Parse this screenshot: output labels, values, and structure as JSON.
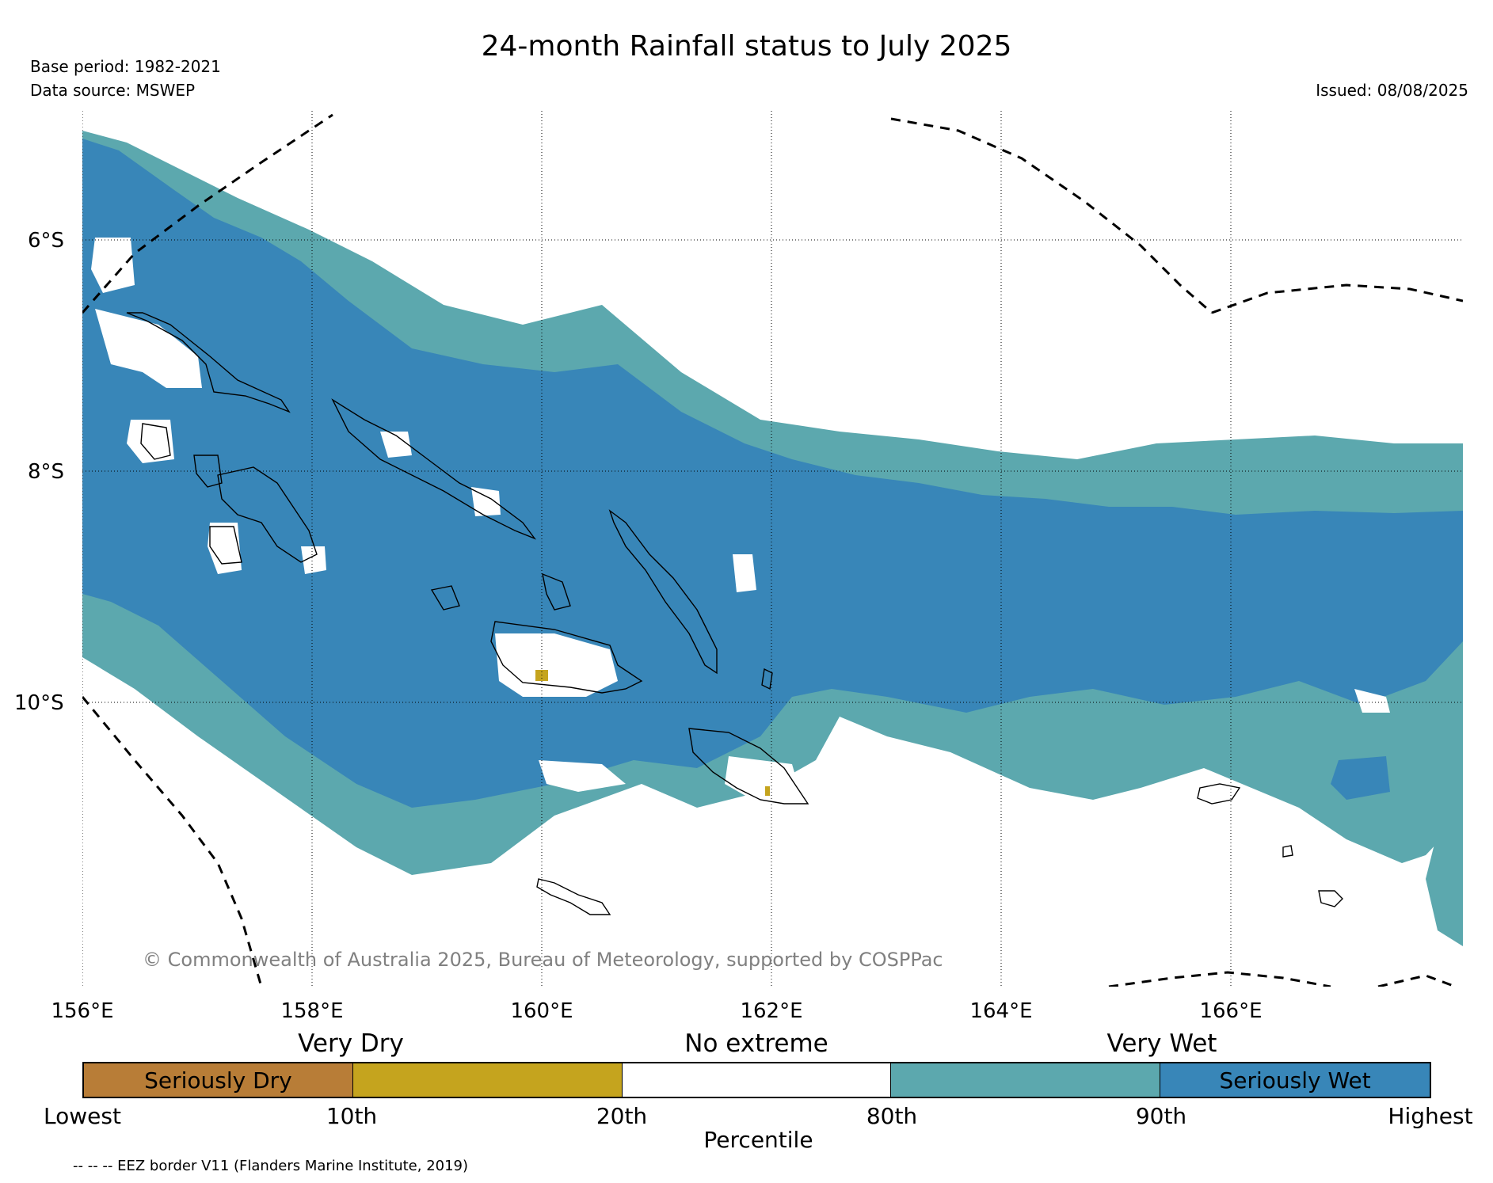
{
  "header": {
    "title": "24-month Rainfall status to July 2025",
    "base_period": "Base period: 1982-2021",
    "data_source": "Data source: MSWEP",
    "issued": "Issued: 08/08/2025"
  },
  "map": {
    "lat_labels": [
      "6°S",
      "8°S",
      "10°S"
    ],
    "lon_labels": [
      "156°E",
      "158°E",
      "160°E",
      "162°E",
      "164°E",
      "166°E"
    ],
    "copyright": "© Commonwealth of Australia 2025, Bureau of Meteorology, supported by COSPPac"
  },
  "legend": {
    "category_labels": [
      "Very Dry",
      "No extreme",
      "Very Wet"
    ],
    "segments": [
      {
        "label": "Seriously Dry",
        "color": "#b87d37"
      },
      {
        "label": "",
        "color": "#c5a41e"
      },
      {
        "label": "",
        "color": "#ffffff"
      },
      {
        "label": "",
        "color": "#5ca8ae"
      },
      {
        "label": "Seriously Wet",
        "color": "#3886b8"
      }
    ],
    "ticks": [
      "Lowest",
      "10th",
      "20th",
      "80th",
      "90th",
      "Highest"
    ],
    "axis_label": "Percentile",
    "eez_note": "-- -- -- EEZ border V11 (Flanders Marine Institute, 2019)"
  }
}
